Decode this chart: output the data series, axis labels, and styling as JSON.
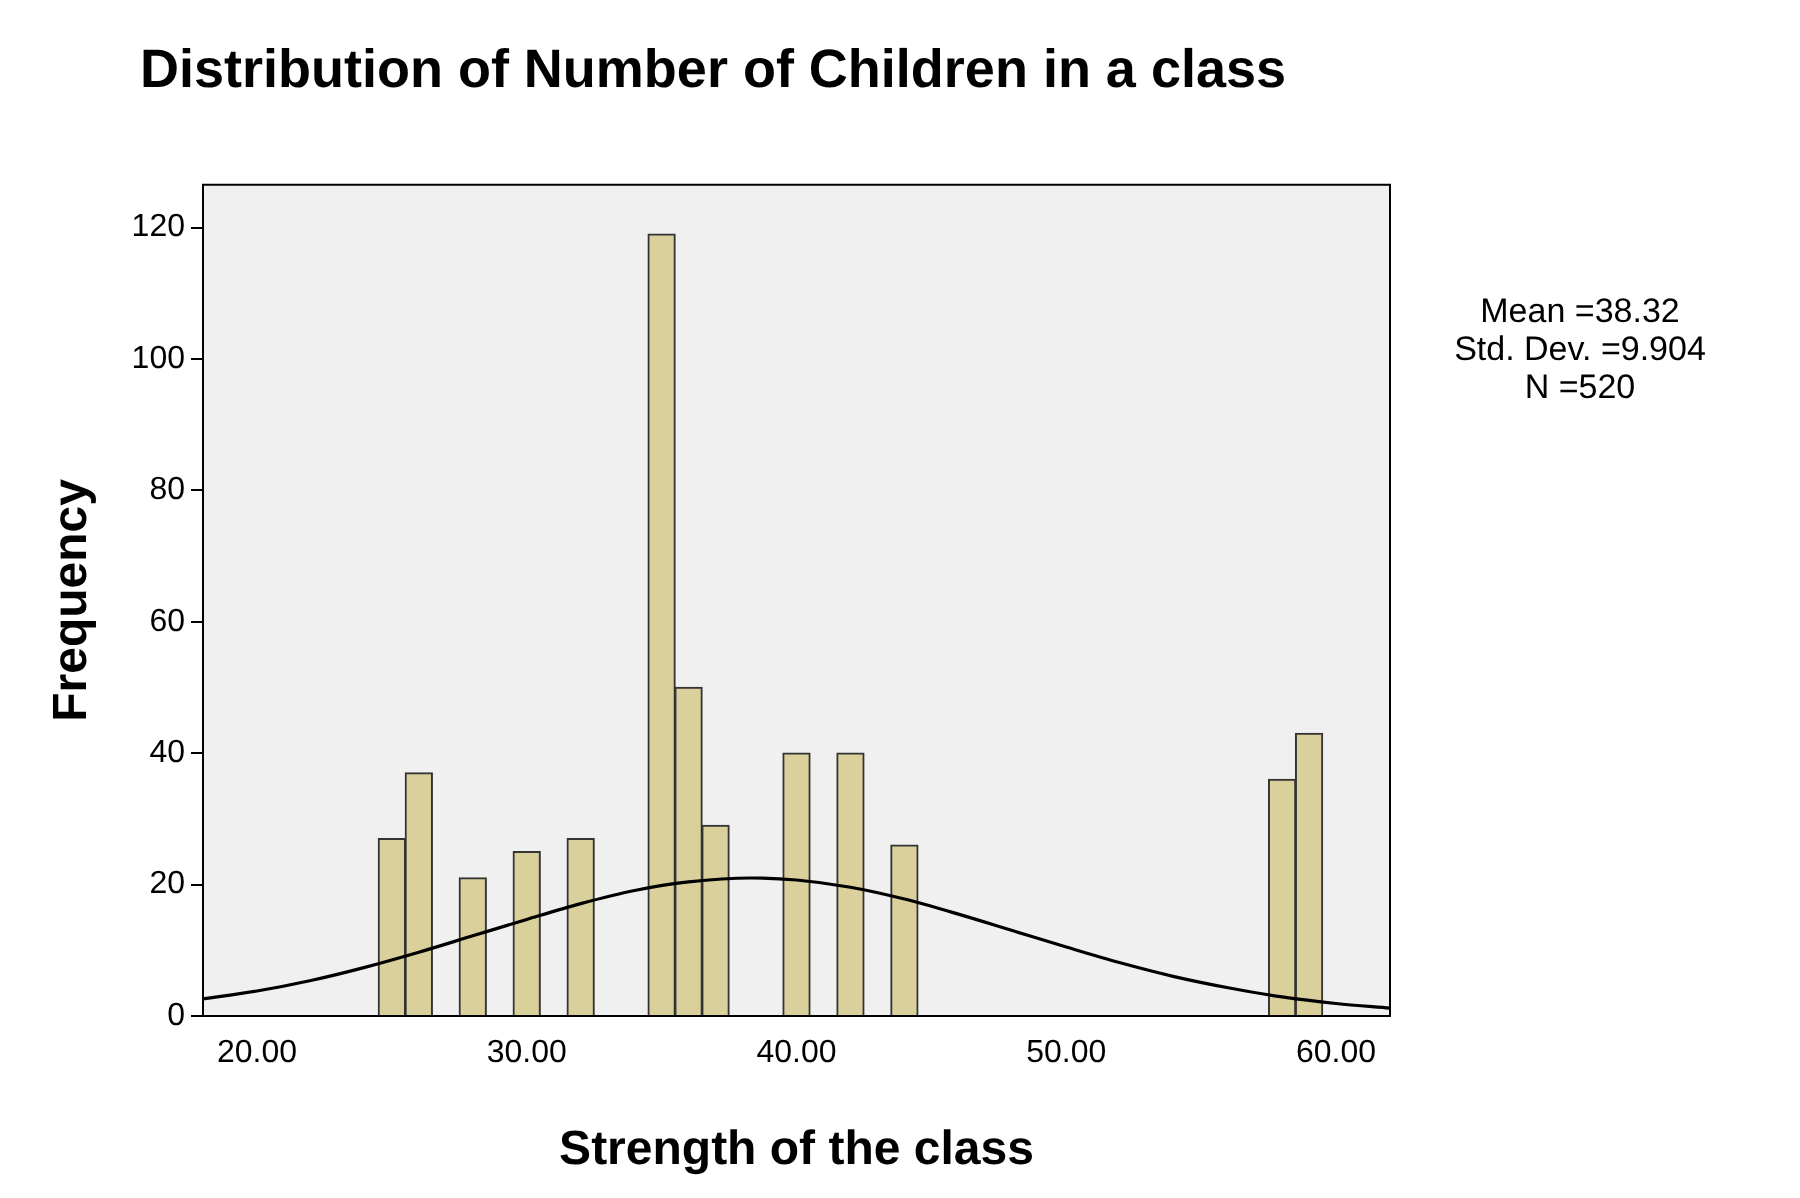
{
  "chart_data": {
    "type": "histogram",
    "title": "Distribution of Number of Children in a class",
    "xlabel": "Strength of the class",
    "ylabel": "Frequency",
    "bins": [
      24.5,
      25.5,
      26.5,
      27.5,
      28.5,
      29.5,
      30.5,
      31.5,
      32.5,
      33.5,
      34.5,
      35.5,
      36.5,
      37.5,
      38.5,
      39.5,
      40.5,
      41.5,
      42.5,
      43.5,
      44.5,
      45.5,
      46.5,
      47.5,
      48.5,
      49.5,
      50.5,
      51.5,
      52.5,
      53.5,
      54.5,
      55.5,
      56.5,
      57.5,
      58.5,
      59.5
    ],
    "values": [
      27,
      37,
      0,
      21,
      0,
      25,
      0,
      27,
      0,
      0,
      119,
      50,
      29,
      0,
      0,
      40,
      0,
      40,
      0,
      26,
      0,
      0,
      0,
      0,
      0,
      0,
      0,
      0,
      0,
      0,
      0,
      0,
      0,
      36,
      43
    ],
    "color": "#d9d09c",
    "series": [
      {
        "type": "line",
        "color": "#000000",
        "x": [
          18,
          20,
          22,
          24,
          26,
          28,
          30,
          32,
          34,
          36,
          38.32,
          40,
          42,
          44,
          46,
          48,
          50,
          52,
          54,
          56,
          58,
          60,
          62
        ],
        "values": [
          2.6,
          3.8,
          5.4,
          7.4,
          9.7,
          12.2,
          14.7,
          17.1,
          19.1,
          20.4,
          21.0,
          20.7,
          19.6,
          17.8,
          15.5,
          13.0,
          10.5,
          8.1,
          6.0,
          4.3,
          2.9,
          1.9,
          1.2
        ]
      }
    ],
    "xlim": [
      18,
      62
    ],
    "ylim": [
      0,
      126.5
    ],
    "xticks": [
      {
        "value": 20,
        "label": "20.00"
      },
      {
        "value": 30,
        "label": "30.00"
      },
      {
        "value": 40,
        "label": "40.00"
      },
      {
        "value": 50,
        "label": "50.00"
      },
      {
        "value": 60,
        "label": "60.00"
      }
    ],
    "yticks": [
      0,
      20,
      40,
      60,
      80,
      100,
      120
    ],
    "grid": false,
    "legend": false,
    "marker": "none",
    "annotations": [
      "Mean =38.32",
      "Std. Dev. =9.904",
      "N =520"
    ]
  }
}
